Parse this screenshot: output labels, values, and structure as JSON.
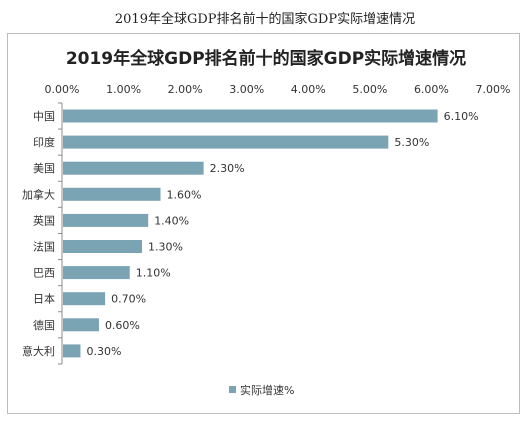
{
  "caption": "2019年全球GDP排名前十的国家GDP实际增速情况",
  "chart_data": {
    "type": "bar",
    "orientation": "horizontal",
    "title": "2019年全球GDP排名前十的国家GDP实际增速情况",
    "categories": [
      "中国",
      "印度",
      "美国",
      "加拿大",
      "英国",
      "法国",
      "巴西",
      "日本",
      "德国",
      "意大利"
    ],
    "series": [
      {
        "name": "实际增速%",
        "values": [
          6.1,
          5.3,
          2.3,
          1.6,
          1.4,
          1.3,
          1.1,
          0.7,
          0.6,
          0.3
        ]
      }
    ],
    "data_labels": [
      "6.10%",
      "5.30%",
      "2.30%",
      "1.60%",
      "1.40%",
      "1.30%",
      "1.10%",
      "0.70%",
      "0.60%",
      "0.30%"
    ],
    "x_ticks": [
      "0.00%",
      "1.00%",
      "2.00%",
      "3.00%",
      "4.00%",
      "5.00%",
      "6.00%",
      "7.00%"
    ],
    "xlim": [
      0,
      7
    ],
    "x_axis_position": "top",
    "gridlines": false,
    "legend_position": "bottom",
    "bar_color": "#7aa3b3"
  }
}
